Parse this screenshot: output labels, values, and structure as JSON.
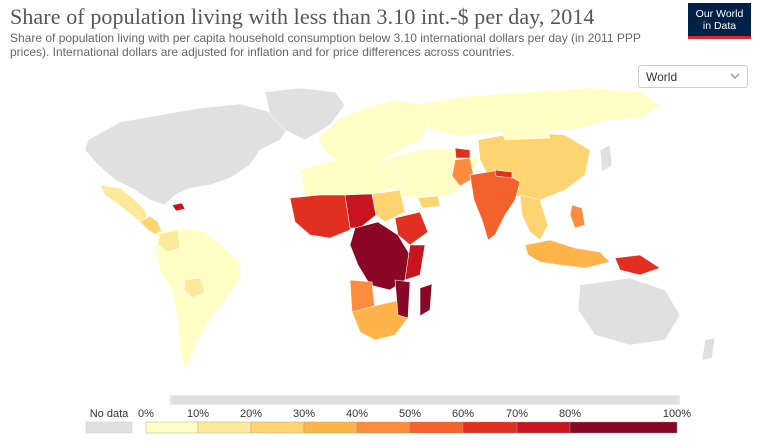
{
  "header": {
    "title": "Share of population living with less than 3.10 int.-$ per day, 2014",
    "subtitle": "Share of population living with per capita household consumption below 3.10 international dollars per day (in 2011 PPP prices). International dollars are adjusted for inflation and for price differences across countries."
  },
  "logo": {
    "line1": "Our World",
    "line2": "in Data"
  },
  "region_select": {
    "selected": "World",
    "icon": "chevron-down-icon"
  },
  "colors": {
    "no_data": "#e0e0e0",
    "scale": [
      "#ffffc5",
      "#fee99a",
      "#fed470",
      "#feb449",
      "#fd8d3c",
      "#f4622b",
      "#e23020",
      "#c8141e",
      "#8b0726"
    ]
  },
  "legend": {
    "no_data_label": "No data",
    "tick_labels": [
      "0%",
      "10%",
      "20%",
      "30%",
      "40%",
      "50%",
      "60%",
      "70%",
      "80%",
      "100%"
    ]
  }
}
